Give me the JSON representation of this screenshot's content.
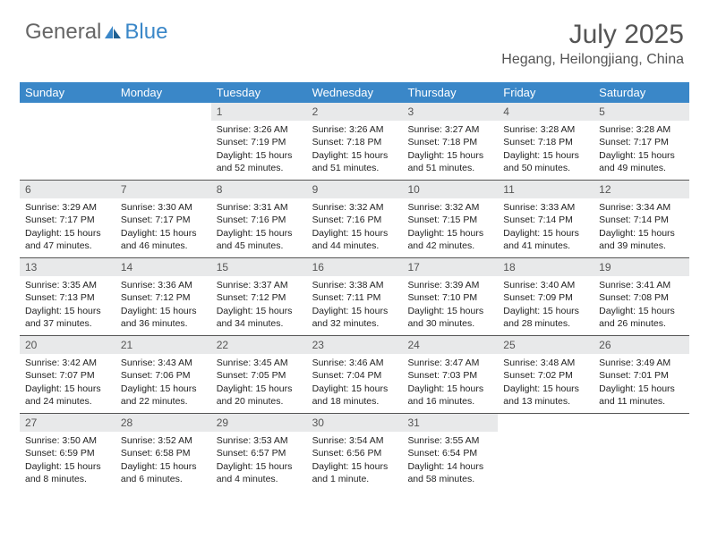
{
  "logo": {
    "text1": "General",
    "text2": "Blue"
  },
  "title": "July 2025",
  "location": "Hegang, Heilongjiang, China",
  "colors": {
    "header_bg": "#3a87c8",
    "header_text": "#ffffff",
    "daynum_bg": "#e8e9ea",
    "daynum_text": "#555555",
    "row_border": "#555555",
    "body_text": "#222222",
    "title_text": "#555555"
  },
  "day_names": [
    "Sunday",
    "Monday",
    "Tuesday",
    "Wednesday",
    "Thursday",
    "Friday",
    "Saturday"
  ],
  "weeks": [
    [
      {
        "n": "",
        "sr": "",
        "ss": "",
        "dl": ""
      },
      {
        "n": "",
        "sr": "",
        "ss": "",
        "dl": ""
      },
      {
        "n": "1",
        "sr": "Sunrise: 3:26 AM",
        "ss": "Sunset: 7:19 PM",
        "dl": "Daylight: 15 hours and 52 minutes."
      },
      {
        "n": "2",
        "sr": "Sunrise: 3:26 AM",
        "ss": "Sunset: 7:18 PM",
        "dl": "Daylight: 15 hours and 51 minutes."
      },
      {
        "n": "3",
        "sr": "Sunrise: 3:27 AM",
        "ss": "Sunset: 7:18 PM",
        "dl": "Daylight: 15 hours and 51 minutes."
      },
      {
        "n": "4",
        "sr": "Sunrise: 3:28 AM",
        "ss": "Sunset: 7:18 PM",
        "dl": "Daylight: 15 hours and 50 minutes."
      },
      {
        "n": "5",
        "sr": "Sunrise: 3:28 AM",
        "ss": "Sunset: 7:17 PM",
        "dl": "Daylight: 15 hours and 49 minutes."
      }
    ],
    [
      {
        "n": "6",
        "sr": "Sunrise: 3:29 AM",
        "ss": "Sunset: 7:17 PM",
        "dl": "Daylight: 15 hours and 47 minutes."
      },
      {
        "n": "7",
        "sr": "Sunrise: 3:30 AM",
        "ss": "Sunset: 7:17 PM",
        "dl": "Daylight: 15 hours and 46 minutes."
      },
      {
        "n": "8",
        "sr": "Sunrise: 3:31 AM",
        "ss": "Sunset: 7:16 PM",
        "dl": "Daylight: 15 hours and 45 minutes."
      },
      {
        "n": "9",
        "sr": "Sunrise: 3:32 AM",
        "ss": "Sunset: 7:16 PM",
        "dl": "Daylight: 15 hours and 44 minutes."
      },
      {
        "n": "10",
        "sr": "Sunrise: 3:32 AM",
        "ss": "Sunset: 7:15 PM",
        "dl": "Daylight: 15 hours and 42 minutes."
      },
      {
        "n": "11",
        "sr": "Sunrise: 3:33 AM",
        "ss": "Sunset: 7:14 PM",
        "dl": "Daylight: 15 hours and 41 minutes."
      },
      {
        "n": "12",
        "sr": "Sunrise: 3:34 AM",
        "ss": "Sunset: 7:14 PM",
        "dl": "Daylight: 15 hours and 39 minutes."
      }
    ],
    [
      {
        "n": "13",
        "sr": "Sunrise: 3:35 AM",
        "ss": "Sunset: 7:13 PM",
        "dl": "Daylight: 15 hours and 37 minutes."
      },
      {
        "n": "14",
        "sr": "Sunrise: 3:36 AM",
        "ss": "Sunset: 7:12 PM",
        "dl": "Daylight: 15 hours and 36 minutes."
      },
      {
        "n": "15",
        "sr": "Sunrise: 3:37 AM",
        "ss": "Sunset: 7:12 PM",
        "dl": "Daylight: 15 hours and 34 minutes."
      },
      {
        "n": "16",
        "sr": "Sunrise: 3:38 AM",
        "ss": "Sunset: 7:11 PM",
        "dl": "Daylight: 15 hours and 32 minutes."
      },
      {
        "n": "17",
        "sr": "Sunrise: 3:39 AM",
        "ss": "Sunset: 7:10 PM",
        "dl": "Daylight: 15 hours and 30 minutes."
      },
      {
        "n": "18",
        "sr": "Sunrise: 3:40 AM",
        "ss": "Sunset: 7:09 PM",
        "dl": "Daylight: 15 hours and 28 minutes."
      },
      {
        "n": "19",
        "sr": "Sunrise: 3:41 AM",
        "ss": "Sunset: 7:08 PM",
        "dl": "Daylight: 15 hours and 26 minutes."
      }
    ],
    [
      {
        "n": "20",
        "sr": "Sunrise: 3:42 AM",
        "ss": "Sunset: 7:07 PM",
        "dl": "Daylight: 15 hours and 24 minutes."
      },
      {
        "n": "21",
        "sr": "Sunrise: 3:43 AM",
        "ss": "Sunset: 7:06 PM",
        "dl": "Daylight: 15 hours and 22 minutes."
      },
      {
        "n": "22",
        "sr": "Sunrise: 3:45 AM",
        "ss": "Sunset: 7:05 PM",
        "dl": "Daylight: 15 hours and 20 minutes."
      },
      {
        "n": "23",
        "sr": "Sunrise: 3:46 AM",
        "ss": "Sunset: 7:04 PM",
        "dl": "Daylight: 15 hours and 18 minutes."
      },
      {
        "n": "24",
        "sr": "Sunrise: 3:47 AM",
        "ss": "Sunset: 7:03 PM",
        "dl": "Daylight: 15 hours and 16 minutes."
      },
      {
        "n": "25",
        "sr": "Sunrise: 3:48 AM",
        "ss": "Sunset: 7:02 PM",
        "dl": "Daylight: 15 hours and 13 minutes."
      },
      {
        "n": "26",
        "sr": "Sunrise: 3:49 AM",
        "ss": "Sunset: 7:01 PM",
        "dl": "Daylight: 15 hours and 11 minutes."
      }
    ],
    [
      {
        "n": "27",
        "sr": "Sunrise: 3:50 AM",
        "ss": "Sunset: 6:59 PM",
        "dl": "Daylight: 15 hours and 8 minutes."
      },
      {
        "n": "28",
        "sr": "Sunrise: 3:52 AM",
        "ss": "Sunset: 6:58 PM",
        "dl": "Daylight: 15 hours and 6 minutes."
      },
      {
        "n": "29",
        "sr": "Sunrise: 3:53 AM",
        "ss": "Sunset: 6:57 PM",
        "dl": "Daylight: 15 hours and 4 minutes."
      },
      {
        "n": "30",
        "sr": "Sunrise: 3:54 AM",
        "ss": "Sunset: 6:56 PM",
        "dl": "Daylight: 15 hours and 1 minute."
      },
      {
        "n": "31",
        "sr": "Sunrise: 3:55 AM",
        "ss": "Sunset: 6:54 PM",
        "dl": "Daylight: 14 hours and 58 minutes."
      },
      {
        "n": "",
        "sr": "",
        "ss": "",
        "dl": ""
      },
      {
        "n": "",
        "sr": "",
        "ss": "",
        "dl": ""
      }
    ]
  ]
}
